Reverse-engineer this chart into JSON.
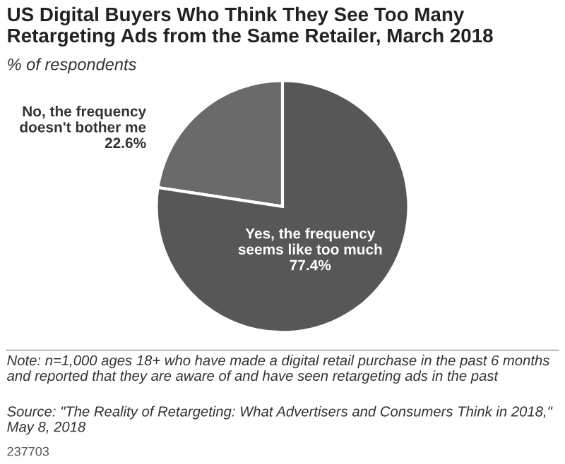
{
  "chart_data": {
    "type": "pie",
    "title": "US Digital Buyers Who Think They See Too Many Retargeting Ads from the Same Retailer, March 2018",
    "subtitle": "% of respondents",
    "categories": [
      "No, the frequency doesn't bother me",
      "Yes, the frequency seems like too much"
    ],
    "values": [
      22.6,
      77.4
    ],
    "colors": [
      "#6a6a6a",
      "#575757"
    ],
    "value_labels": [
      "22.6%",
      "77.4%"
    ],
    "annotations": [
      "Note: n=1,000 ages 18+ who have made a digital retail purchase in the past 6 months and reported that they are aware of and have seen retargeting ads in the past",
      "Source: \"The Reality of Retargeting: What Advertisers and Consumers Think in 2018,\" May 8, 2018",
      "237703"
    ]
  }
}
